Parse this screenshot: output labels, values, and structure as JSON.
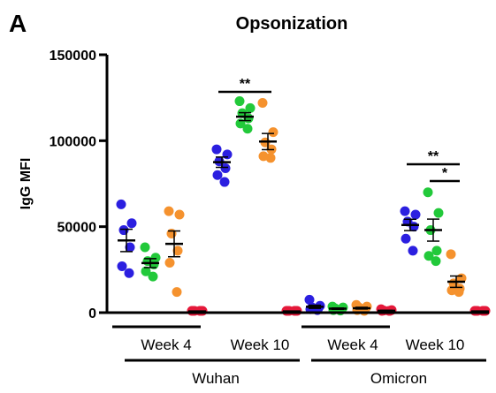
{
  "chart_data": {
    "panel_letter": "A",
    "type": "scatter",
    "title": "Opsonization",
    "ylabel": "IgG MFI",
    "ylim": [
      0,
      150000
    ],
    "yticks": [
      0,
      50000,
      100000,
      150000
    ],
    "ytick_labels": [
      "0",
      "50000",
      "100000",
      "150000"
    ],
    "series_colors": [
      "#2b1fe0",
      "#22c93a",
      "#f5922e",
      "#e5193a"
    ],
    "groups": [
      {
        "label": "Week 4",
        "variant": "Wuhan",
        "series": [
          {
            "values": [
              63000,
              52000,
              48000,
              38000,
              27000,
              23000
            ],
            "mean": 42000,
            "sem": 6500
          },
          {
            "values": [
              38000,
              32000,
              30000,
              28000,
              24000,
              21000
            ],
            "mean": 28800,
            "sem": 2600
          },
          {
            "values": [
              59000,
              57000,
              46000,
              36000,
              29000,
              12000
            ],
            "mean": 40000,
            "sem": 7500
          },
          {
            "values": [
              900,
              800,
              700,
              700,
              600,
              500
            ],
            "mean": 700,
            "sem": 100
          }
        ]
      },
      {
        "label": "Week 10",
        "variant": "Wuhan",
        "series": [
          {
            "values": [
              95000,
              92000,
              88000,
              84000,
              80000,
              76000
            ],
            "mean": 87500,
            "sem": 3000
          },
          {
            "values": [
              123000,
              119000,
              116000,
              113000,
              110000,
              107000
            ],
            "mean": 114000,
            "sem": 2300
          },
          {
            "values": [
              122000,
              105000,
              99000,
              95000,
              91000,
              90000
            ],
            "mean": 99500,
            "sem": 4700
          },
          {
            "values": [
              900,
              800,
              700,
              700,
              600,
              500
            ],
            "mean": 700,
            "sem": 100
          }
        ]
      },
      {
        "label": "Week 4",
        "variant": "Omicron",
        "series": [
          {
            "values": [
              7500,
              4000,
              3000,
              2500,
              2000,
              1500
            ],
            "mean": 3400,
            "sem": 900
          },
          {
            "values": [
              3500,
              3000,
              2500,
              2000,
              1500,
              1200
            ],
            "mean": 2300,
            "sem": 400
          },
          {
            "values": [
              4500,
              3500,
              3000,
              2000,
              1500,
              1000
            ],
            "mean": 2600,
            "sem": 500
          },
          {
            "values": [
              2000,
              1500,
              1200,
              900,
              700,
              500
            ],
            "mean": 1100,
            "sem": 250
          }
        ]
      },
      {
        "label": "Week 10",
        "variant": "Omicron",
        "series": [
          {
            "values": [
              59000,
              57000,
              53000,
              50000,
              43000,
              36000
            ],
            "mean": 51000,
            "sem": 3300
          },
          {
            "values": [
              70000,
              58000,
              48000,
              36000,
              33000,
              30000
            ],
            "mean": 48000,
            "sem": 6400
          },
          {
            "values": [
              34000,
              20000,
              17000,
              14000,
              13000,
              12000
            ],
            "mean": 18000,
            "sem": 3300
          },
          {
            "values": [
              900,
              800,
              700,
              700,
              600,
              500
            ],
            "mean": 700,
            "sem": 100
          }
        ]
      }
    ],
    "variants": [
      "Wuhan",
      "Omicron"
    ],
    "significance": [
      {
        "label": "**",
        "group": 1,
        "from_series": 0,
        "to_series": 2
      },
      {
        "label": "**",
        "group": 3,
        "from_series": 0,
        "to_series": 2
      },
      {
        "label": "*",
        "group": 3,
        "from_series": 1,
        "to_series": 2
      }
    ]
  }
}
